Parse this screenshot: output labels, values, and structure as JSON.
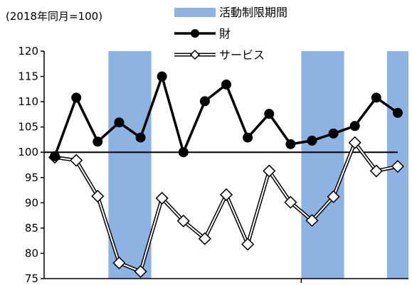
{
  "unit_label": "(2018年同月=100)",
  "chart_data": {
    "type": "line",
    "title": "",
    "xlabel": "",
    "ylabel": "",
    "ylim": [
      75,
      120
    ],
    "yticks": [
      75,
      80,
      85,
      90,
      95,
      100,
      105,
      110,
      115,
      120
    ],
    "x_count": 17,
    "baseline": 100,
    "shaded_band_label": "活動制限期間",
    "shaded_band_color": "#8db3e2",
    "shaded_bands": [
      [
        2.5,
        4.5
      ],
      [
        11.5,
        13.5
      ],
      [
        15.5,
        16.5
      ]
    ],
    "series": [
      {
        "name": "財",
        "marker": "filled-circle",
        "color": "#000000",
        "values": [
          99.2,
          110.8,
          102.1,
          105.9,
          102.9,
          115.0,
          100.0,
          110.1,
          113.4,
          102.9,
          107.6,
          101.6,
          102.3,
          103.7,
          105.2,
          110.8,
          107.8
        ]
      },
      {
        "name": "サービス",
        "marker": "open-diamond",
        "color": "#000000",
        "values": [
          99.0,
          98.4,
          91.3,
          78.1,
          76.4,
          90.9,
          86.4,
          82.9,
          91.6,
          81.8,
          96.3,
          90.1,
          86.5,
          91.2,
          101.9,
          96.3,
          97.2
        ]
      }
    ]
  }
}
